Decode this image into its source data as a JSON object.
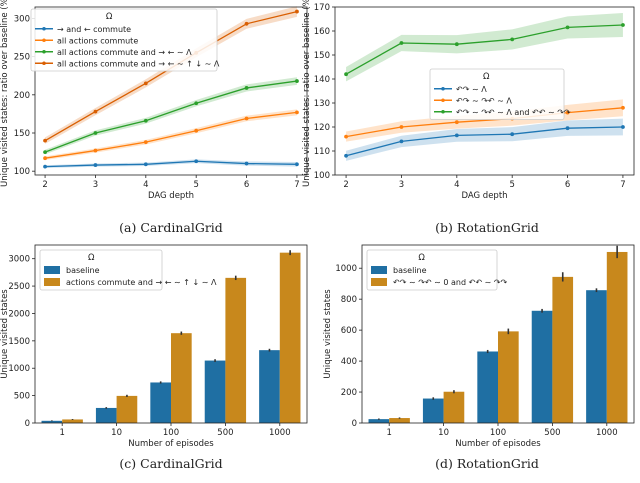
{
  "chart_data": [
    {
      "id": "a",
      "type": "line",
      "caption": "(a) CardinalGrid",
      "xlabel": "DAG depth",
      "ylabel": "Unique visited states: ratio over baseline (%)",
      "x": [
        2,
        3,
        4,
        5,
        6,
        7
      ],
      "xlim": [
        1.8,
        7.2
      ],
      "ylim": [
        95,
        315
      ],
      "yticks": [
        100,
        150,
        200,
        250,
        300
      ],
      "legend_title": "Ω",
      "legend_loc": "top-left",
      "series": [
        {
          "name": "→ and ← commute",
          "color": "#1f77b4",
          "values": [
            106,
            108,
            109,
            113,
            110,
            109
          ],
          "band": 3
        },
        {
          "name": "all actions commute",
          "color": "#ff7f0e",
          "values": [
            117,
            127,
            138,
            153,
            169,
            177
          ],
          "band": 4
        },
        {
          "name": "all actions commute and → ← ∼ Λ",
          "color": "#2ca02c",
          "values": [
            125,
            150,
            166,
            189,
            209,
            218
          ],
          "band": 5
        },
        {
          "name": "all actions commute and → ← ∼ ↑ ↓ ∼ Λ",
          "color": "#d95f02",
          "values": [
            140,
            178,
            215,
            255,
            293,
            309
          ],
          "band": 7
        }
      ]
    },
    {
      "id": "b",
      "type": "line",
      "caption": "(b) RotationGrid",
      "xlabel": "DAG depth",
      "ylabel": "Unique visited states: ratio over baseline (%)",
      "x": [
        2,
        3,
        4,
        5,
        6,
        7
      ],
      "xlim": [
        1.8,
        7.2
      ],
      "ylim": [
        100,
        170
      ],
      "yticks": [
        100,
        110,
        120,
        130,
        140,
        150,
        160,
        170
      ],
      "legend_title": "Ω",
      "legend_loc": "center-left",
      "series": [
        {
          "name": "↶↷ ∼ Λ",
          "color": "#1f77b4",
          "values": [
            108,
            114,
            116.5,
            117,
            119.5,
            120
          ],
          "band": 3.5
        },
        {
          "name": "↶↷ ∼ ↷↶ ∼ Λ",
          "color": "#ff7f0e",
          "values": [
            116,
            120,
            122,
            123.5,
            126,
            128
          ],
          "band": 3.5
        },
        {
          "name": "↶↷ ∼ ↷↶ ∼ Λ and ↶↶ ∼ ↷↷",
          "color": "#2ca02c",
          "values": [
            142,
            155,
            154.5,
            156.5,
            161.5,
            162.5
          ],
          "band": 5
        }
      ]
    },
    {
      "id": "c",
      "type": "bar",
      "caption": "(c) CardinalGrid",
      "xlabel": "Number of episodes",
      "ylabel": "Unique visited states",
      "categories": [
        "1",
        "10",
        "100",
        "500",
        "1000"
      ],
      "ylim": [
        0,
        3250
      ],
      "yticks": [
        0,
        500,
        1000,
        1500,
        2000,
        2500,
        3000
      ],
      "legend_title": "Ω",
      "legend_loc": "top-left",
      "series": [
        {
          "name": "baseline",
          "color": "#1f6fa3",
          "values": [
            40,
            275,
            740,
            1140,
            1330
          ],
          "err": [
            8,
            15,
            20,
            25,
            25
          ]
        },
        {
          "name": "actions commute and → ← ∼ ↑ ↓ ∼ Λ",
          "color": "#c8881c",
          "values": [
            65,
            495,
            1640,
            2650,
            3110
          ],
          "err": [
            8,
            20,
            30,
            40,
            45
          ]
        }
      ]
    },
    {
      "id": "d",
      "type": "bar",
      "caption": "(d) RotationGrid",
      "xlabel": "Number of episodes",
      "ylabel": "Unique visited states",
      "categories": [
        "1",
        "10",
        "100",
        "500",
        "1000"
      ],
      "ylim": [
        0,
        1150
      ],
      "yticks": [
        0,
        200,
        400,
        600,
        800,
        1000
      ],
      "legend_title": "Ω",
      "legend_loc": "top-left",
      "series": [
        {
          "name": "baseline",
          "color": "#1f6fa3",
          "values": [
            25,
            158,
            462,
            725,
            858
          ],
          "err": [
            4,
            8,
            10,
            12,
            12
          ]
        },
        {
          "name": "↶↷ ∼ ↷↶ ∼ 0 and ↶↶ ∼ ↷↷",
          "color": "#c8881c",
          "values": [
            32,
            202,
            592,
            944,
            1105
          ],
          "err": [
            4,
            10,
            18,
            30,
            40
          ]
        }
      ]
    }
  ]
}
